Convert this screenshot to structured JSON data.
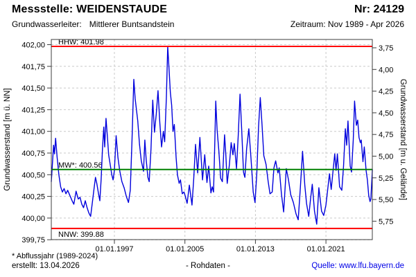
{
  "header": {
    "station": "Messstelle: WEIDENSTAUDE",
    "number": "Nr: 24129",
    "aquifer_label": "Grundwasserleiter:",
    "aquifer_value": "Mittlerer Buntsandstein",
    "period": "Zeitraum: Nov 1989 - Apr 2026"
  },
  "footer": {
    "footnote": "* Abflussjahr (1989-2024)",
    "created": "erstellt:  13.04.2026",
    "center_note": "- Rohdaten -",
    "source": "Quelle: www.lfu.bayern.de",
    "source_color": "#0000e6"
  },
  "chart_data": {
    "type": "line",
    "x_axis": {
      "ticks": [
        {
          "t": 1997.0,
          "label": "01.01.1997"
        },
        {
          "t": 2005.0,
          "label": "01.01.2005"
        },
        {
          "t": 2013.0,
          "label": "01.01.2013"
        },
        {
          "t": 2021.0,
          "label": "01.01.2021"
        }
      ],
      "range_start": "Nov 1989",
      "range_end": "Apr 2026"
    },
    "y_left": {
      "label": "Grundwasserstand [m ü. NN]",
      "min": 399.75,
      "max": 402.0,
      "step": 0.25,
      "ticks": [
        {
          "value": 402.0,
          "label": "402,00"
        },
        {
          "value": 401.75,
          "label": "401,75"
        },
        {
          "value": 401.5,
          "label": "401,50"
        },
        {
          "value": 401.25,
          "label": "401,25"
        },
        {
          "value": 401.0,
          "label": "401,00"
        },
        {
          "value": 400.75,
          "label": "400,75"
        },
        {
          "value": 400.5,
          "label": "400,50"
        },
        {
          "value": 400.25,
          "label": "400,25"
        },
        {
          "value": 400.0,
          "label": "400,00"
        },
        {
          "value": 399.75,
          "label": "399,75"
        }
      ]
    },
    "y_right": {
      "label": "Grundwasserstand [m u. Gelände]",
      "min": 3.75,
      "max": 5.75,
      "step": 0.25,
      "ticks": [
        {
          "value": 3.75,
          "label": "3,75"
        },
        {
          "value": 4.0,
          "label": "4,00"
        },
        {
          "value": 4.25,
          "label": "4,25"
        },
        {
          "value": 4.5,
          "label": "4,50"
        },
        {
          "value": 4.75,
          "label": "4,75"
        },
        {
          "value": 5.0,
          "label": "5,00"
        },
        {
          "value": 5.25,
          "label": "5,25"
        },
        {
          "value": 5.5,
          "label": "5,50"
        },
        {
          "value": 5.75,
          "label": "5,75"
        }
      ]
    },
    "grid": {
      "color": "#c9c9c9",
      "dash": "3,3",
      "show": true
    },
    "reference_lines": [
      {
        "name": "HHW",
        "label": "HHW: 401.98",
        "value": 401.98,
        "color": "#ff0000",
        "label_side": "above"
      },
      {
        "name": "MW",
        "label": "MW*: 400.56",
        "value": 400.56,
        "color": "#008000",
        "label_side": "above"
      },
      {
        "name": "NNW",
        "label": "NNW: 399.88",
        "value": 399.88,
        "color": "#ff0000",
        "label_side": "below"
      }
    ],
    "series": [
      {
        "name": "Grundwasserstand Rohdaten",
        "color": "#0000dc",
        "points": [
          [
            1989.84,
            400.42
          ],
          [
            1989.95,
            400.6
          ],
          [
            1990.1,
            400.84
          ],
          [
            1990.2,
            400.74
          ],
          [
            1990.33,
            400.92
          ],
          [
            1990.5,
            400.7
          ],
          [
            1990.7,
            400.5
          ],
          [
            1990.9,
            400.36
          ],
          [
            1991.1,
            400.3
          ],
          [
            1991.3,
            400.34
          ],
          [
            1991.5,
            400.28
          ],
          [
            1991.7,
            400.32
          ],
          [
            1991.95,
            400.26
          ],
          [
            1992.2,
            400.2
          ],
          [
            1992.4,
            400.16
          ],
          [
            1992.65,
            400.31
          ],
          [
            1992.9,
            400.22
          ],
          [
            1993.1,
            400.24
          ],
          [
            1993.3,
            400.16
          ],
          [
            1993.5,
            400.12
          ],
          [
            1993.7,
            400.2
          ],
          [
            1993.9,
            400.12
          ],
          [
            1994.1,
            400.06
          ],
          [
            1994.3,
            400.02
          ],
          [
            1994.5,
            400.18
          ],
          [
            1994.7,
            400.35
          ],
          [
            1994.85,
            400.47
          ],
          [
            1995.0,
            400.4
          ],
          [
            1995.2,
            400.28
          ],
          [
            1995.35,
            400.2
          ],
          [
            1995.5,
            400.45
          ],
          [
            1995.65,
            400.8
          ],
          [
            1995.8,
            401.05
          ],
          [
            1995.9,
            400.82
          ],
          [
            1996.05,
            401.15
          ],
          [
            1996.2,
            400.95
          ],
          [
            1996.35,
            400.73
          ],
          [
            1996.55,
            400.6
          ],
          [
            1996.7,
            400.5
          ],
          [
            1996.85,
            400.44
          ],
          [
            1997.0,
            400.55
          ],
          [
            1997.2,
            400.95
          ],
          [
            1997.4,
            400.7
          ],
          [
            1997.6,
            400.55
          ],
          [
            1997.85,
            400.42
          ],
          [
            1998.1,
            400.35
          ],
          [
            1998.35,
            400.25
          ],
          [
            1998.6,
            400.18
          ],
          [
            1998.8,
            400.32
          ],
          [
            1999.0,
            400.9
          ],
          [
            1999.2,
            401.6
          ],
          [
            1999.35,
            401.38
          ],
          [
            1999.5,
            401.25
          ],
          [
            1999.65,
            401.12
          ],
          [
            1999.85,
            400.85
          ],
          [
            2000.05,
            400.66
          ],
          [
            2000.3,
            400.54
          ],
          [
            2000.45,
            400.9
          ],
          [
            2000.6,
            400.68
          ],
          [
            2000.8,
            400.47
          ],
          [
            2000.95,
            400.42
          ],
          [
            2001.15,
            400.8
          ],
          [
            2001.35,
            401.36
          ],
          [
            2001.55,
            400.99
          ],
          [
            2001.75,
            401.2
          ],
          [
            2001.95,
            401.47
          ],
          [
            2002.15,
            401.1
          ],
          [
            2002.35,
            400.82
          ],
          [
            2002.55,
            401.0
          ],
          [
            2002.7,
            400.88
          ],
          [
            2002.9,
            401.4
          ],
          [
            2003.05,
            401.98
          ],
          [
            2003.2,
            401.72
          ],
          [
            2003.35,
            401.45
          ],
          [
            2003.5,
            401.3
          ],
          [
            2003.65,
            401.0
          ],
          [
            2003.8,
            401.08
          ],
          [
            2004.0,
            400.7
          ],
          [
            2004.15,
            400.5
          ],
          [
            2004.35,
            400.4
          ],
          [
            2004.5,
            400.44
          ],
          [
            2004.7,
            400.28
          ],
          [
            2004.9,
            400.3
          ],
          [
            2005.05,
            400.25
          ],
          [
            2005.25,
            400.17
          ],
          [
            2005.5,
            400.38
          ],
          [
            2005.8,
            400.15
          ],
          [
            2006.0,
            400.45
          ],
          [
            2006.2,
            400.85
          ],
          [
            2006.45,
            400.52
          ],
          [
            2006.7,
            400.93
          ],
          [
            2007.0,
            400.44
          ],
          [
            2007.25,
            400.73
          ],
          [
            2007.5,
            400.41
          ],
          [
            2007.7,
            400.6
          ],
          [
            2007.95,
            400.29
          ],
          [
            2008.1,
            400.36
          ],
          [
            2008.25,
            400.3
          ],
          [
            2008.4,
            400.9
          ],
          [
            2008.5,
            401.35
          ],
          [
            2008.65,
            401.02
          ],
          [
            2008.85,
            400.78
          ],
          [
            2009.05,
            400.46
          ],
          [
            2009.25,
            400.42
          ],
          [
            2009.5,
            400.96
          ],
          [
            2009.65,
            400.72
          ],
          [
            2009.8,
            400.4
          ],
          [
            2010.05,
            400.62
          ],
          [
            2010.25,
            400.87
          ],
          [
            2010.45,
            400.73
          ],
          [
            2010.6,
            400.86
          ],
          [
            2010.85,
            400.57
          ],
          [
            2011.05,
            400.95
          ],
          [
            2011.25,
            401.43
          ],
          [
            2011.45,
            401.0
          ],
          [
            2011.65,
            400.53
          ],
          [
            2011.8,
            400.47
          ],
          [
            2012.0,
            400.8
          ],
          [
            2012.25,
            401.03
          ],
          [
            2012.5,
            400.68
          ],
          [
            2012.75,
            400.3
          ],
          [
            2012.95,
            400.18
          ],
          [
            2013.15,
            400.5
          ],
          [
            2013.35,
            401.05
          ],
          [
            2013.55,
            401.39
          ],
          [
            2013.75,
            401.08
          ],
          [
            2013.95,
            400.72
          ],
          [
            2014.2,
            400.62
          ],
          [
            2014.45,
            400.42
          ],
          [
            2014.65,
            400.28
          ],
          [
            2014.9,
            400.3
          ],
          [
            2015.1,
            400.58
          ],
          [
            2015.3,
            400.66
          ],
          [
            2015.55,
            400.52
          ],
          [
            2015.7,
            400.58
          ],
          [
            2015.95,
            400.28
          ],
          [
            2016.2,
            400.07
          ],
          [
            2016.5,
            400.57
          ],
          [
            2016.75,
            400.44
          ],
          [
            2017.0,
            400.27
          ],
          [
            2017.3,
            400.18
          ],
          [
            2017.6,
            400.05
          ],
          [
            2017.85,
            399.98
          ],
          [
            2018.1,
            400.35
          ],
          [
            2018.35,
            400.77
          ],
          [
            2018.6,
            400.38
          ],
          [
            2018.8,
            400.17
          ],
          [
            2019.05,
            400.02
          ],
          [
            2019.25,
            400.22
          ],
          [
            2019.45,
            400.39
          ],
          [
            2019.7,
            400.08
          ],
          [
            2019.95,
            399.93
          ],
          [
            2020.2,
            400.35
          ],
          [
            2020.5,
            400.08
          ],
          [
            2020.75,
            400.03
          ],
          [
            2021.0,
            400.15
          ],
          [
            2021.4,
            400.51
          ],
          [
            2021.6,
            400.33
          ],
          [
            2022.0,
            400.74
          ],
          [
            2022.15,
            400.55
          ],
          [
            2022.3,
            400.74
          ],
          [
            2022.55,
            400.36
          ],
          [
            2022.8,
            400.32
          ],
          [
            2023.0,
            400.6
          ],
          [
            2023.2,
            401.03
          ],
          [
            2023.35,
            400.84
          ],
          [
            2023.5,
            401.12
          ],
          [
            2023.75,
            400.6
          ],
          [
            2023.9,
            400.53
          ],
          [
            2024.1,
            400.9
          ],
          [
            2024.25,
            401.35
          ],
          [
            2024.45,
            401.07
          ],
          [
            2024.6,
            401.13
          ],
          [
            2024.75,
            400.93
          ],
          [
            2024.9,
            400.87
          ],
          [
            2025.0,
            400.9
          ],
          [
            2025.2,
            400.65
          ],
          [
            2025.35,
            400.82
          ],
          [
            2025.55,
            400.55
          ],
          [
            2025.7,
            400.44
          ],
          [
            2025.85,
            400.26
          ],
          [
            2026.0,
            400.19
          ],
          [
            2026.1,
            400.22
          ],
          [
            2026.27,
            400.56
          ]
        ]
      }
    ]
  }
}
